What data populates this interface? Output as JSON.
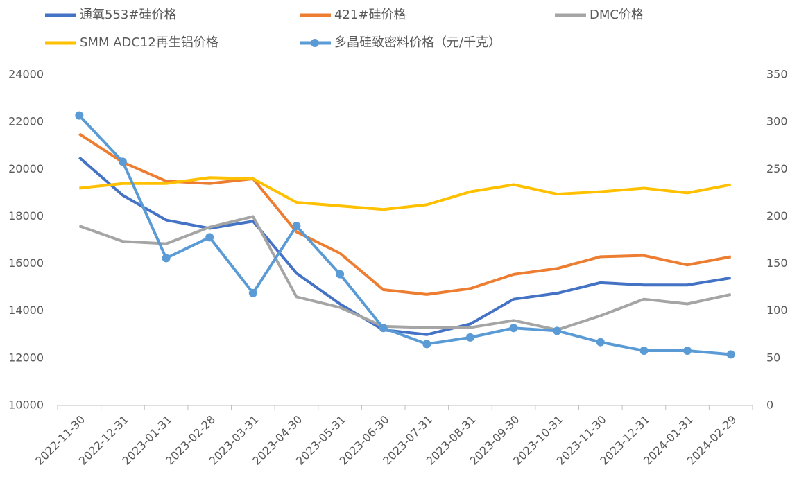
{
  "chart_data": {
    "type": "line",
    "categories": [
      "2022-11-30",
      "2022-12-31",
      "2023-01-31",
      "2023-02-28",
      "2023-03-31",
      "2023-04-30",
      "2023-05-31",
      "2023-06-30",
      "2023-07-31",
      "2023-08-31",
      "2023-09-30",
      "2023-10-31",
      "2023-11-30",
      "2023-12-31",
      "2024-01-31",
      "2024-02-29"
    ],
    "series": [
      {
        "name": "通氧553#硅价格",
        "color": "#4472c4",
        "values": [
          20500,
          18900,
          17850,
          17500,
          17800,
          15600,
          14300,
          13200,
          13000,
          13450,
          14500,
          14750,
          15200,
          15100,
          15100,
          15400
        ]
      },
      {
        "name": "421#硅价格",
        "color": "#ed7d31",
        "values": [
          21500,
          20300,
          19500,
          19400,
          19600,
          17350,
          16450,
          14900,
          14700,
          14950,
          15550,
          15800,
          16300,
          16350,
          15950,
          16300
        ]
      },
      {
        "name": "DMC价格",
        "color": "#a5a5a5",
        "values": [
          17600,
          16950,
          16850,
          17550,
          18000,
          14600,
          14150,
          13350,
          13300,
          13300,
          13600,
          13200,
          13800,
          14500,
          14300,
          14700
        ]
      },
      {
        "name": "SMM ADC12再生铝价格",
        "color": "#ffc000",
        "values": [
          19200,
          19400,
          19400,
          19650,
          19600,
          18600,
          18450,
          18300,
          18500,
          19050,
          19350,
          18950,
          19050,
          19200,
          19000,
          19350
        ]
      },
      {
        "name": "多晶硅致密料价格（元/千克）",
        "color": "#5b9bd5",
        "axis": "y2",
        "markers": true,
        "values": [
          307,
          258,
          156,
          178,
          119,
          190,
          139,
          82,
          65,
          72,
          82,
          79,
          67,
          58,
          58,
          54
        ]
      }
    ],
    "ylim": [
      10000,
      24000
    ],
    "yticks": [
      10000,
      12000,
      14000,
      16000,
      18000,
      20000,
      22000,
      24000
    ],
    "y2lim": [
      0,
      350
    ],
    "y2ticks": [
      0,
      50,
      100,
      150,
      200,
      250,
      300,
      350
    ],
    "grid": false,
    "legend": "top"
  }
}
